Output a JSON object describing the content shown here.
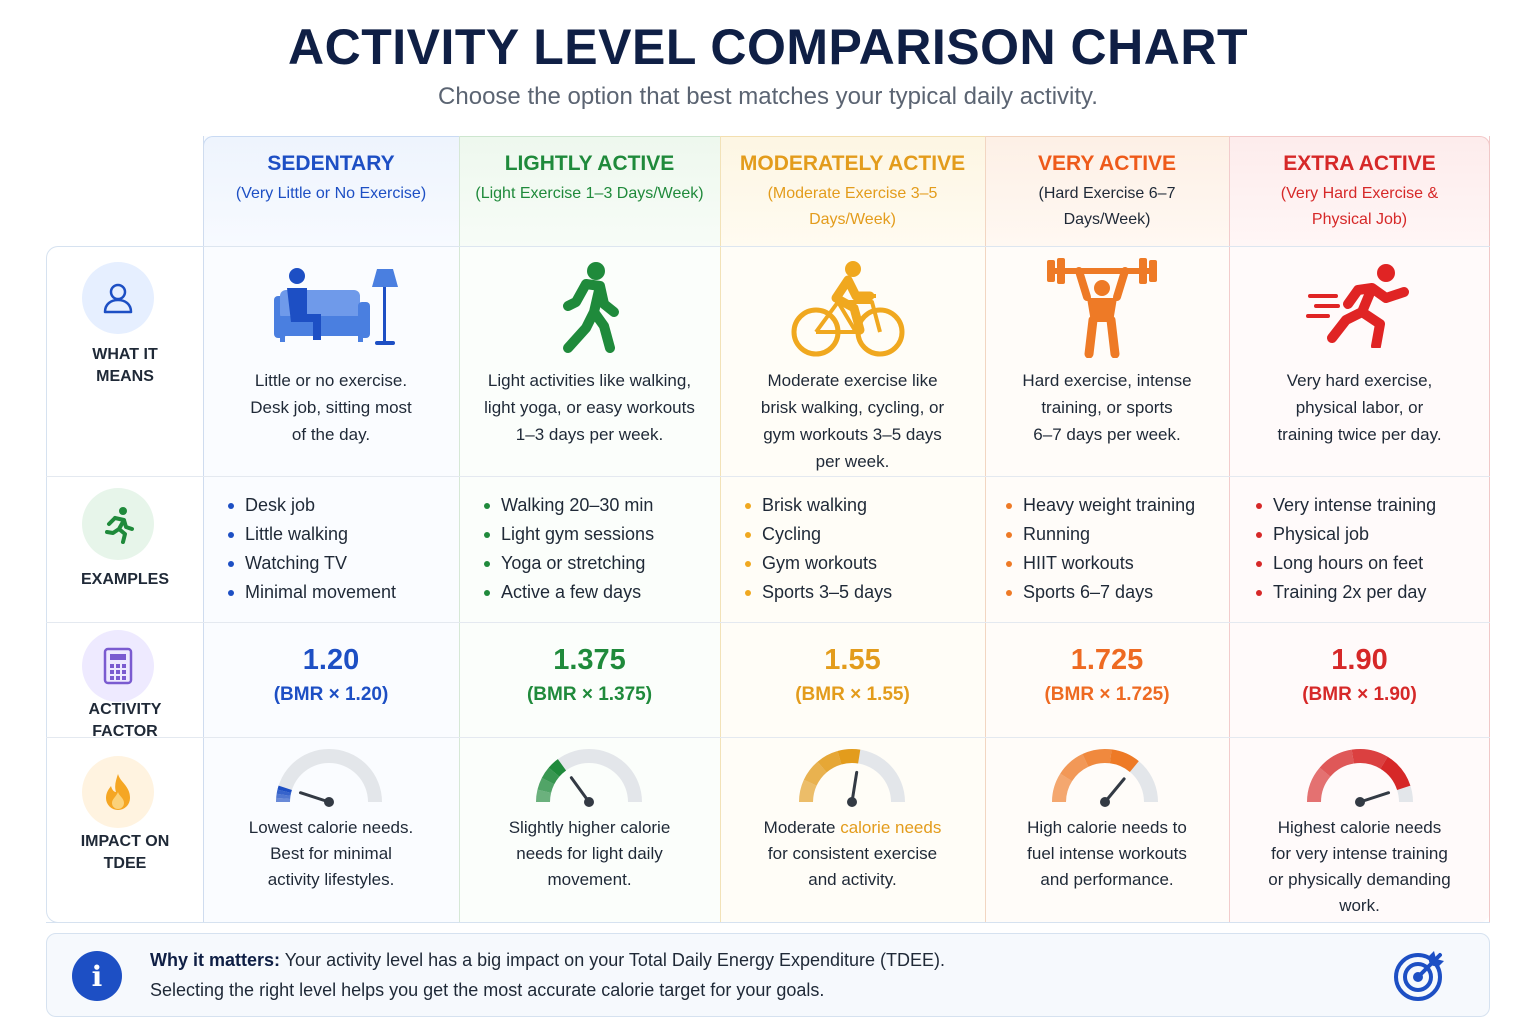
{
  "title": "ACTIVITY LEVEL COMPARISON CHART",
  "subtitle": "Choose the option that best matches your typical daily activity.",
  "rows": [
    {
      "label_lines": [
        "WHAT IT",
        "MEANS"
      ],
      "icon": "person-icon"
    },
    {
      "label_lines": [
        "EXAMPLES"
      ],
      "icon": "running-icon"
    },
    {
      "label_lines": [
        "ACTIVITY",
        "FACTOR"
      ],
      "icon": "calculator-icon"
    },
    {
      "label_lines": [
        "IMPACT ON",
        "TDEE"
      ],
      "icon": "flame-icon"
    }
  ],
  "columns": [
    {
      "title": "SEDENTARY",
      "sub_lines": [
        "(Very Little or No Exercise)"
      ],
      "color": "#1d4fc4",
      "icon": "sofa-lamp-icon",
      "desc_lines": [
        "Little or no exercise.",
        "Desk job, sitting most",
        "of the day."
      ],
      "examples": [
        "Desk job",
        "Little walking",
        "Watching TV",
        "Minimal movement"
      ],
      "factor": "1.20",
      "factor_sub": "(BMR × 1.20)",
      "gauge_level": 0.1,
      "impact_lines": [
        "Lowest calorie needs.",
        "Best for minimal",
        "activity lifestyles."
      ]
    },
    {
      "title": "LIGHTLY ACTIVE",
      "sub_lines": [
        "(Light Exercise 1–3 Days/Week)"
      ],
      "color": "#1f8a3b",
      "icon": "walking-icon",
      "desc_lines": [
        "Light activities like walking,",
        "light yoga, or easy workouts",
        "1–3 days per week."
      ],
      "examples": [
        "Walking 20–30 min",
        "Light gym sessions",
        "Yoga or stretching",
        "Active a few days"
      ],
      "factor": "1.375",
      "factor_sub": "(BMR × 1.375)",
      "gauge_level": 0.3,
      "impact_lines": [
        "Slightly higher calorie",
        "needs for light daily",
        "movement."
      ]
    },
    {
      "title": "MODERATELY ACTIVE",
      "sub_lines": [
        "(Moderate Exercise 3–5",
        "Days/Week)"
      ],
      "color": "#e39c1c",
      "icon": "cycling-icon",
      "desc_lines": [
        "Moderate exercise like",
        "brisk walking, cycling, or",
        "gym workouts 3–5 days",
        "per week."
      ],
      "examples": [
        "Brisk walking",
        "Cycling",
        "Gym workouts",
        "Sports 3–5 days"
      ],
      "factor": "1.55",
      "factor_sub": "(BMR × 1.55)",
      "gauge_level": 0.55,
      "impact_pre": "Moderate ",
      "impact_hl": "calorie needs",
      "impact_lines": [
        "for consistent exercise",
        "and activity."
      ]
    },
    {
      "title": "VERY ACTIVE",
      "sub_lines": [
        "(Hard Exercise 6–7",
        "Days/Week)"
      ],
      "color": "#ee7a26",
      "icon": "weightlifting-icon",
      "desc_lines": [
        "Hard exercise, intense",
        "training, or sports",
        "6–7 days per week."
      ],
      "examples": [
        "Heavy weight training",
        "Running",
        "HIIT workouts",
        "Sports 6–7 days"
      ],
      "factor": "1.725",
      "factor_sub": "(BMR × 1.725)",
      "gauge_level": 0.72,
      "impact_lines": [
        "High calorie needs to",
        "fuel intense workouts",
        "and performance."
      ]
    },
    {
      "title": "EXTRA ACTIVE",
      "sub_lines": [
        "(Very Hard Exercise &",
        "Physical Job)"
      ],
      "color": "#d62828",
      "icon": "sprinting-icon",
      "desc_lines": [
        "Very hard exercise,",
        "physical labor, or",
        "training twice per day."
      ],
      "examples": [
        "Very intense training",
        "Physical job",
        "Long hours on feet",
        "Training 2x per day"
      ],
      "factor": "1.90",
      "factor_sub": "(BMR × 1.90)",
      "gauge_level": 0.9,
      "impact_lines": [
        "Highest calorie needs",
        "for very intense training",
        "or physically demanding",
        "work."
      ]
    }
  ],
  "footer": {
    "bold": "Why it matters:",
    "line1": " Your activity level has a big impact on your Total Daily Energy Expenditure (TDEE).",
    "line2": "Selecting the right level helps you get the most accurate calorie target for your goals.",
    "icon": "target-icon"
  }
}
